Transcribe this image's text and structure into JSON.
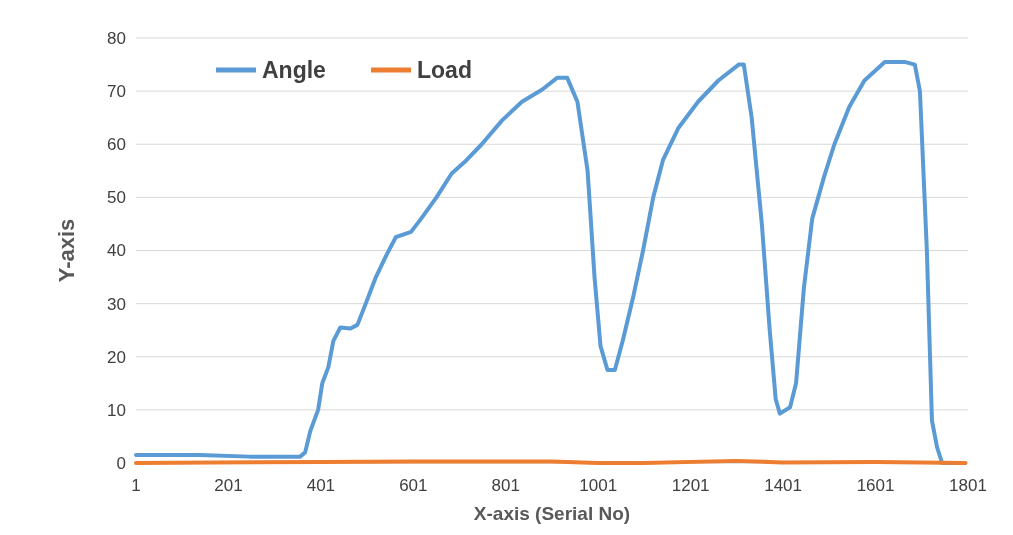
{
  "chart_data": {
    "type": "line",
    "xlabel": "X-axis (Serial No)",
    "ylabel": "Y-axis",
    "xlim": [
      1,
      1801
    ],
    "xticks": [
      1,
      201,
      401,
      601,
      801,
      1001,
      1201,
      1401,
      1601,
      1801
    ],
    "ylim": [
      0,
      80
    ],
    "yticks": [
      0,
      10,
      20,
      30,
      40,
      50,
      60,
      70,
      80
    ],
    "grid": "y",
    "legend": "top left",
    "marker": "none",
    "line_style": "solid",
    "series": [
      {
        "name": "Angle",
        "color": "#5b9bd5",
        "x": [
          1,
          138,
          247,
          356,
          367,
          378,
          395,
          404,
          417,
          428,
          443,
          465,
          480,
          498,
          520,
          542,
          563,
          596,
          618,
          651,
          684,
          716,
          749,
          793,
          836,
          880,
          912,
          934,
          956,
          978,
          993,
          1006,
          1021,
          1037,
          1054,
          1076,
          1098,
          1120,
          1141,
          1174,
          1217,
          1261,
          1305,
          1316,
          1333,
          1355,
          1372,
          1385,
          1394,
          1416,
          1429,
          1446,
          1464,
          1490,
          1512,
          1544,
          1577,
          1621,
          1664,
          1686,
          1697,
          1712,
          1723,
          1734,
          1745,
          1795
        ],
        "values": [
          1.5,
          1.5,
          1.2,
          1.2,
          2,
          6,
          10,
          15,
          18,
          23,
          25.5,
          25.3,
          26,
          30,
          35,
          39,
          42.5,
          43.5,
          46,
          50,
          54.5,
          57,
          60,
          64.5,
          68,
          70.3,
          72.5,
          72.5,
          68,
          55,
          35,
          22,
          17.5,
          17.5,
          23,
          31,
          40,
          50,
          57,
          63,
          68,
          72,
          75,
          75,
          65,
          45,
          25,
          12,
          9.3,
          10.5,
          15,
          33,
          46,
          54,
          60,
          67,
          72,
          75.5,
          75.5,
          75,
          70,
          40,
          8,
          3,
          0,
          0
        ]
      },
      {
        "name": "Load",
        "color": "#ed7d31",
        "x": [
          1,
          400,
          600,
          900,
          1000,
          1100,
          1300,
          1400,
          1600,
          1795
        ],
        "values": [
          0,
          0.2,
          0.3,
          0.3,
          0,
          0,
          0.4,
          0.1,
          0.2,
          0
        ]
      }
    ]
  }
}
